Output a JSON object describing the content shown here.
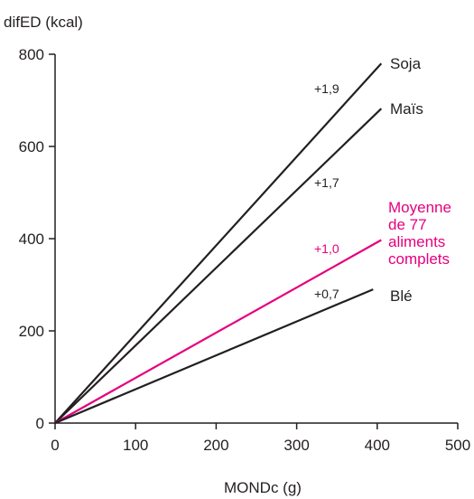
{
  "chart_data": {
    "type": "line",
    "title": "",
    "xlabel": "MONDc (g)",
    "ylabel": "difED (kcal)",
    "xlim": [
      0,
      500
    ],
    "ylim": [
      0,
      800
    ],
    "xticks": [
      "0",
      "100",
      "200",
      "300",
      "400",
      "500"
    ],
    "yticks": [
      "0",
      "200",
      "400",
      "600",
      "800"
    ],
    "grid": false,
    "legend": "none",
    "series": [
      {
        "name": "Soja",
        "slope_label": "+1,9",
        "color": "#231f20",
        "x": [
          0,
          405
        ],
        "y": [
          0,
          780
        ]
      },
      {
        "name": "Maïs",
        "slope_label": "+1,7",
        "color": "#231f20",
        "x": [
          0,
          405
        ],
        "y": [
          0,
          682
        ]
      },
      {
        "name": "Moyenne de 77 aliments complets",
        "name_lines": [
          "Moyenne",
          "de 77",
          "aliments",
          "complets"
        ],
        "slope_label": "+1,0",
        "color": "#e5007e",
        "x": [
          0,
          405
        ],
        "y": [
          0,
          397
        ]
      },
      {
        "name": "Blé",
        "slope_label": "+0,7",
        "color": "#231f20",
        "x": [
          0,
          395
        ],
        "y": [
          0,
          290
        ]
      }
    ]
  }
}
